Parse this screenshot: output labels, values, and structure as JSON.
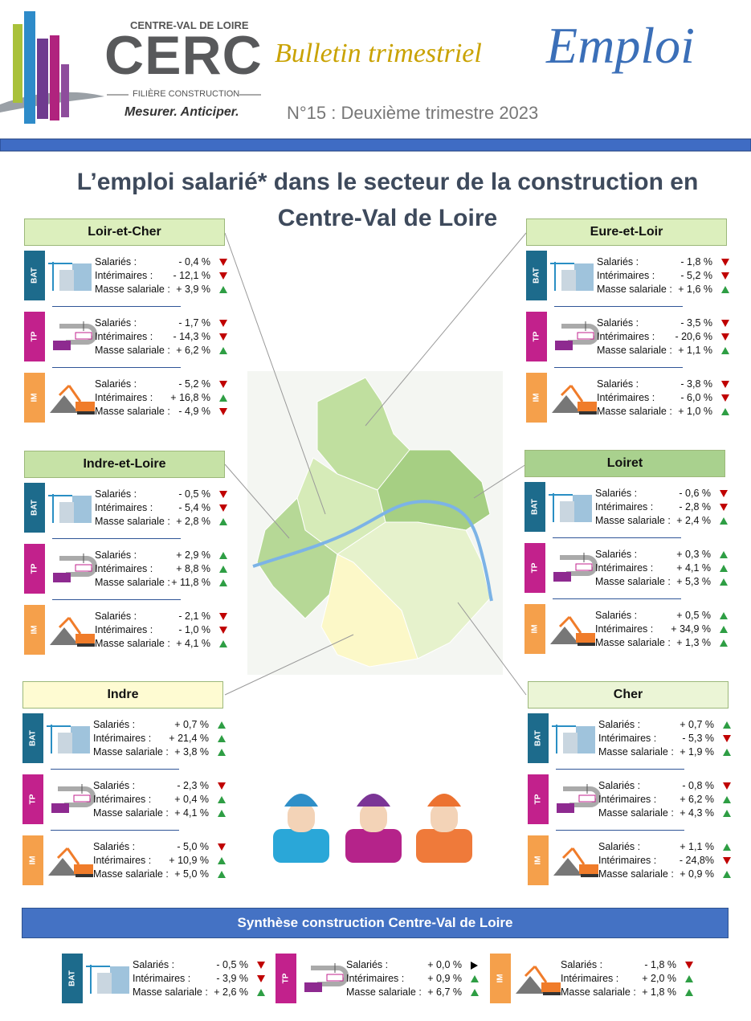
{
  "header": {
    "region": "CENTRE-VAL DE LOIRE",
    "logo": "CERC",
    "filiere": "FILIÈRE CONSTRUCTION",
    "tagline": "Mesurer. Anticiper.",
    "bulletin": "Bulletin trimestriel",
    "emploi": "Emploi",
    "issue": "N°15 : Deuxième trimestre 2023"
  },
  "title": [
    "L’emploi salarié* dans le secteur de la construction en",
    "Centre-Val de Loire"
  ],
  "row_labels": [
    "Salariés :",
    "Intérimaires :",
    "Masse salariale :"
  ],
  "sectors": [
    {
      "label": "BAT",
      "color": "#1d6b8c"
    },
    {
      "label": "TP",
      "color": "#c2218c"
    },
    {
      "label": "IM",
      "color": "#f5a04b"
    }
  ],
  "departments": [
    {
      "name": "Loir-et-Cher",
      "color": "#dcefbd",
      "sectors": [
        [
          {
            "value": "- 0,4 %",
            "trend": "down"
          },
          {
            "value": "- 12,1 %",
            "trend": "down"
          },
          {
            "value": "+ 3,9 %",
            "trend": "up"
          }
        ],
        [
          {
            "value": "- 1,7 %",
            "trend": "down"
          },
          {
            "value": "- 14,3 %",
            "trend": "down"
          },
          {
            "value": "+ 6,2 %",
            "trend": "up"
          }
        ],
        [
          {
            "value": "- 5,2 %",
            "trend": "down"
          },
          {
            "value": "+ 16,8 %",
            "trend": "up"
          },
          {
            "value": "- 4,9 %",
            "trend": "down"
          }
        ]
      ]
    },
    {
      "name": "Indre-et-Loire",
      "color": "#c6e2a6",
      "sectors": [
        [
          {
            "value": "- 0,5 %",
            "trend": "down"
          },
          {
            "value": "- 5,4 %",
            "trend": "down"
          },
          {
            "value": "+ 2,8 %",
            "trend": "up"
          }
        ],
        [
          {
            "value": "+ 2,9 %",
            "trend": "up"
          },
          {
            "value": "+ 8,8 %",
            "trend": "up"
          },
          {
            "value": "+ 11,8 %",
            "trend": "up"
          }
        ],
        [
          {
            "value": "- 2,1 %",
            "trend": "down"
          },
          {
            "value": "- 1,0 %",
            "trend": "down"
          },
          {
            "value": "+ 4,1 %",
            "trend": "up"
          }
        ]
      ]
    },
    {
      "name": "Indre",
      "color": "#fefbd2",
      "sectors": [
        [
          {
            "value": "+ 0,7 %",
            "trend": "up"
          },
          {
            "value": "+ 21,4 %",
            "trend": "up"
          },
          {
            "value": "+ 3,8 %",
            "trend": "up"
          }
        ],
        [
          {
            "value": "- 2,3 %",
            "trend": "down"
          },
          {
            "value": "+ 0,4 %",
            "trend": "up"
          },
          {
            "value": "+ 4,1 %",
            "trend": "up"
          }
        ],
        [
          {
            "value": "- 5,0 %",
            "trend": "down"
          },
          {
            "value": "+ 10,9 %",
            "trend": "up"
          },
          {
            "value": "+ 5,0 %",
            "trend": "up"
          }
        ]
      ]
    },
    {
      "name": "Eure-et-Loir",
      "color": "#dcefbd",
      "sectors": [
        [
          {
            "value": "- 1,8 %",
            "trend": "down"
          },
          {
            "value": "- 5,2 %",
            "trend": "down"
          },
          {
            "value": "+ 1,6 %",
            "trend": "up"
          }
        ],
        [
          {
            "value": "- 3,5 %",
            "trend": "down"
          },
          {
            "value": "- 20,6 %",
            "trend": "down"
          },
          {
            "value": "+ 1,1 %",
            "trend": "up"
          }
        ],
        [
          {
            "value": "- 3,8 %",
            "trend": "down"
          },
          {
            "value": "- 6,0 %",
            "trend": "down"
          },
          {
            "value": "+ 1,0 %",
            "trend": "up"
          }
        ]
      ]
    },
    {
      "name": "Loiret",
      "color": "#a9d18e",
      "sectors": [
        [
          {
            "value": "- 0,6 %",
            "trend": "down"
          },
          {
            "value": "- 2,8 %",
            "trend": "down"
          },
          {
            "value": "+ 2,4 %",
            "trend": "up"
          }
        ],
        [
          {
            "value": "+ 0,3 %",
            "trend": "up"
          },
          {
            "value": "+ 4,1 %",
            "trend": "up"
          },
          {
            "value": "+ 5,3 %",
            "trend": "up"
          }
        ],
        [
          {
            "value": "+ 0,5 %",
            "trend": "up"
          },
          {
            "value": "+ 34,9 %",
            "trend": "up"
          },
          {
            "value": "+ 1,3 %",
            "trend": "up"
          }
        ]
      ]
    },
    {
      "name": "Cher",
      "color": "#ebf5d6",
      "sectors": [
        [
          {
            "value": "+ 0,7 %",
            "trend": "up"
          },
          {
            "value": "- 5,3 %",
            "trend": "down"
          },
          {
            "value": "+ 1,9 %",
            "trend": "up"
          }
        ],
        [
          {
            "value": "- 0,8 %",
            "trend": "down"
          },
          {
            "value": "+ 6,2 %",
            "trend": "up"
          },
          {
            "value": "+ 4,3 %",
            "trend": "up"
          }
        ],
        [
          {
            "value": "+ 1,1 %",
            "trend": "up"
          },
          {
            "value": "- 24,8%",
            "trend": "down"
          },
          {
            "value": "+ 0,9 %",
            "trend": "up"
          }
        ]
      ]
    }
  ],
  "synthesis": {
    "title": "Synthèse construction Centre-Val de Loire",
    "color": "#4472c4",
    "sectors": [
      [
        {
          "value": "- 0,5 %",
          "trend": "down"
        },
        {
          "value": "- 3,9 %",
          "trend": "down"
        },
        {
          "value": "+ 2,6 %",
          "trend": "up"
        }
      ],
      [
        {
          "value": "+ 0,0 %",
          "trend": "flat"
        },
        {
          "value": "+ 0,9 %",
          "trend": "up"
        },
        {
          "value": "+ 6,7 %",
          "trend": "up"
        }
      ],
      [
        {
          "value": "- 1,8 %",
          "trend": "down"
        },
        {
          "value": "+ 2,0 %",
          "trend": "up"
        },
        {
          "value": "+ 1,8  %",
          "trend": "up"
        }
      ]
    ]
  }
}
